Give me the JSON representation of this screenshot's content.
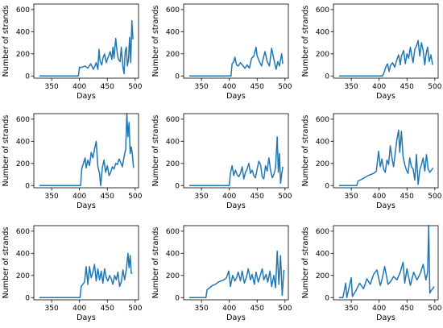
{
  "colors": {
    "line": "#1f77b4",
    "axis": "#000000",
    "background": "#ffffff"
  },
  "chart_data": [
    {
      "type": "line",
      "xlabel": "Days",
      "ylabel": "Number of strands",
      "xlim": [
        318,
        506
      ],
      "ylim": [
        -20,
        650
      ],
      "xticks": [
        350,
        400,
        450,
        500
      ],
      "yticks": [
        0,
        200,
        400,
        600
      ],
      "series": [
        {
          "x": [
            328,
            398,
            400,
            402,
            410,
            415,
            420,
            425,
            430,
            433,
            435,
            437,
            440,
            442,
            445,
            448,
            450,
            453,
            455,
            458,
            460,
            462,
            465,
            468,
            470,
            473,
            475,
            478,
            480,
            482,
            484,
            486,
            488,
            490,
            492,
            494,
            496
          ],
          "y": [
            0,
            0,
            80,
            75,
            90,
            70,
            110,
            60,
            120,
            60,
            240,
            130,
            100,
            160,
            200,
            120,
            150,
            190,
            220,
            150,
            260,
            160,
            340,
            200,
            150,
            130,
            260,
            80,
            20,
            220,
            260,
            90,
            150,
            350,
            120,
            500,
            330
          ]
        }
      ]
    },
    {
      "type": "line",
      "xlabel": "Days",
      "ylabel": "Number of strands",
      "xlim": [
        318,
        506
      ],
      "ylim": [
        -20,
        650
      ],
      "xticks": [
        350,
        400,
        450,
        500
      ],
      "yticks": [
        0,
        200,
        400,
        600
      ],
      "series": [
        {
          "x": [
            328,
            403,
            405,
            408,
            410,
            413,
            416,
            420,
            425,
            428,
            432,
            436,
            440,
            444,
            448,
            450,
            455,
            458,
            460,
            464,
            468,
            472,
            476,
            480,
            484,
            487,
            490,
            494,
            496
          ],
          "y": [
            0,
            0,
            110,
            130,
            170,
            100,
            90,
            120,
            90,
            70,
            100,
            70,
            160,
            180,
            260,
            180,
            120,
            90,
            140,
            220,
            130,
            90,
            250,
            150,
            60,
            130,
            90,
            200,
            110
          ]
        }
      ]
    },
    {
      "type": "line",
      "xlabel": "Days",
      "ylabel": "Number of strands",
      "xlim": [
        318,
        506
      ],
      "ylim": [
        -20,
        650
      ],
      "xticks": [
        350,
        400,
        450,
        500
      ],
      "yticks": [
        0,
        200,
        400,
        600
      ],
      "series": [
        {
          "x": [
            328,
            406,
            408,
            412,
            415,
            418,
            420,
            424,
            428,
            432,
            435,
            438,
            440,
            444,
            447,
            450,
            453,
            456,
            458,
            461,
            464,
            467,
            470,
            473,
            476,
            479,
            482,
            484,
            487,
            490,
            493,
            496
          ],
          "y": [
            0,
            0,
            20,
            80,
            110,
            40,
            90,
            120,
            80,
            150,
            190,
            100,
            180,
            230,
            110,
            200,
            160,
            260,
            200,
            120,
            240,
            270,
            320,
            180,
            300,
            230,
            100,
            190,
            260,
            130,
            190,
            100
          ]
        }
      ]
    },
    {
      "type": "line",
      "xlabel": "Days",
      "ylabel": "Number of strands",
      "xlim": [
        318,
        506
      ],
      "ylim": [
        -20,
        650
      ],
      "xticks": [
        350,
        400,
        450,
        500
      ],
      "yticks": [
        0,
        200,
        400,
        600
      ],
      "series": [
        {
          "x": [
            328,
            402,
            404,
            407,
            410,
            412,
            415,
            418,
            421,
            424,
            427,
            430,
            433,
            436,
            438,
            441,
            444,
            447,
            450,
            453,
            456,
            459,
            462,
            465,
            468,
            471,
            474,
            477,
            480,
            483,
            485,
            487,
            489,
            491,
            493,
            495,
            497
          ],
          "y": [
            0,
            0,
            150,
            200,
            250,
            160,
            230,
            180,
            300,
            250,
            330,
            400,
            170,
            110,
            0,
            160,
            230,
            120,
            180,
            90,
            120,
            170,
            150,
            200,
            190,
            240,
            210,
            170,
            260,
            330,
            650,
            440,
            570,
            290,
            350,
            280,
            160
          ]
        }
      ]
    },
    {
      "type": "line",
      "xlabel": "Days",
      "ylabel": "Number of strands",
      "xlim": [
        318,
        506
      ],
      "ylim": [
        -20,
        650
      ],
      "xticks": [
        350,
        400,
        450,
        500
      ],
      "yticks": [
        0,
        200,
        400,
        600
      ],
      "series": [
        {
          "x": [
            328,
            400,
            402,
            405,
            408,
            411,
            414,
            417,
            420,
            423,
            426,
            429,
            432,
            435,
            438,
            441,
            444,
            447,
            450,
            453,
            456,
            459,
            462,
            465,
            468,
            471,
            474,
            477,
            480,
            483,
            486,
            488,
            490,
            492,
            494,
            496
          ],
          "y": [
            0,
            0,
            110,
            180,
            90,
            140,
            100,
            80,
            110,
            170,
            60,
            120,
            150,
            200,
            110,
            140,
            90,
            70,
            150,
            220,
            190,
            80,
            60,
            180,
            130,
            250,
            140,
            70,
            100,
            160,
            440,
            120,
            290,
            20,
            100,
            170
          ]
        }
      ]
    },
    {
      "type": "line",
      "xlabel": "Days",
      "ylabel": "Number of strands",
      "xlim": [
        318,
        506
      ],
      "ylim": [
        -20,
        650
      ],
      "xticks": [
        350,
        400,
        450,
        500
      ],
      "yticks": [
        0,
        200,
        400,
        600
      ],
      "series": [
        {
          "x": [
            328,
            360,
            362,
            370,
            380,
            390,
            395,
            399,
            402,
            405,
            408,
            411,
            414,
            417,
            420,
            423,
            426,
            429,
            432,
            435,
            437,
            440,
            443,
            446,
            449,
            452,
            455,
            458,
            461,
            464,
            467,
            470,
            473,
            476,
            479,
            482,
            485,
            488,
            491,
            494,
            497
          ],
          "y": [
            0,
            0,
            40,
            60,
            90,
            110,
            130,
            310,
            170,
            240,
            150,
            120,
            230,
            190,
            360,
            250,
            170,
            300,
            420,
            500,
            300,
            490,
            260,
            190,
            140,
            110,
            250,
            170,
            150,
            50,
            280,
            10,
            140,
            190,
            250,
            130,
            280,
            150,
            120,
            140,
            160
          ]
        }
      ]
    },
    {
      "type": "line",
      "xlabel": "Days",
      "ylabel": "Number of strands",
      "xlim": [
        318,
        506
      ],
      "ylim": [
        -20,
        650
      ],
      "xticks": [
        350,
        400,
        450,
        500
      ],
      "yticks": [
        0,
        200,
        400,
        600
      ],
      "series": [
        {
          "x": [
            328,
            401,
            403,
            406,
            409,
            412,
            415,
            418,
            421,
            424,
            427,
            430,
            433,
            436,
            439,
            442,
            445,
            448,
            451,
            454,
            457,
            460,
            463,
            466,
            469,
            472,
            475,
            478,
            481,
            484,
            487,
            489,
            491,
            493,
            495
          ],
          "y": [
            0,
            0,
            100,
            120,
            140,
            280,
            120,
            280,
            180,
            230,
            300,
            150,
            260,
            160,
            240,
            130,
            260,
            180,
            150,
            200,
            170,
            120,
            200,
            160,
            230,
            100,
            140,
            250,
            160,
            250,
            400,
            270,
            380,
            220,
            220
          ]
        }
      ]
    },
    {
      "type": "line",
      "xlabel": "Days",
      "ylabel": "Number of strands",
      "xlim": [
        318,
        506
      ],
      "ylim": [
        -20,
        650
      ],
      "xticks": [
        350,
        400,
        450,
        500
      ],
      "yticks": [
        0,
        200,
        400,
        600
      ],
      "series": [
        {
          "x": [
            328,
            358,
            360,
            365,
            370,
            375,
            380,
            385,
            390,
            395,
            399,
            402,
            406,
            410,
            413,
            416,
            420,
            423,
            427,
            431,
            434,
            438,
            441,
            445,
            448,
            452,
            455,
            459,
            462,
            466,
            469,
            473,
            476,
            480,
            483,
            486,
            489,
            492,
            495,
            498
          ],
          "y": [
            0,
            0,
            70,
            90,
            110,
            120,
            140,
            150,
            160,
            180,
            240,
            100,
            200,
            150,
            180,
            230,
            150,
            240,
            130,
            190,
            260,
            160,
            210,
            120,
            230,
            140,
            190,
            260,
            160,
            210,
            140,
            240,
            100,
            200,
            90,
            420,
            120,
            380,
            20,
            250
          ]
        }
      ]
    },
    {
      "type": "line",
      "xlabel": "Days",
      "ylabel": "Number of strands",
      "xlim": [
        318,
        506
      ],
      "ylim": [
        -20,
        650
      ],
      "xticks": [
        350,
        400,
        450,
        500
      ],
      "yticks": [
        0,
        200,
        400,
        600
      ],
      "series": [
        {
          "x": [
            328,
            335,
            340,
            342,
            350,
            352,
            358,
            365,
            372,
            378,
            384,
            390,
            396,
            402,
            405,
            410,
            416,
            420,
            426,
            432,
            438,
            443,
            446,
            450,
            456,
            462,
            468,
            474,
            479,
            484,
            487,
            489,
            491,
            493,
            496,
            499
          ],
          "y": [
            0,
            0,
            130,
            0,
            180,
            10,
            60,
            130,
            80,
            170,
            120,
            210,
            250,
            110,
            160,
            280,
            120,
            140,
            190,
            160,
            230,
            320,
            130,
            260,
            110,
            230,
            160,
            220,
            300,
            160,
            230,
            650,
            40,
            60,
            80,
            100
          ]
        }
      ]
    }
  ]
}
